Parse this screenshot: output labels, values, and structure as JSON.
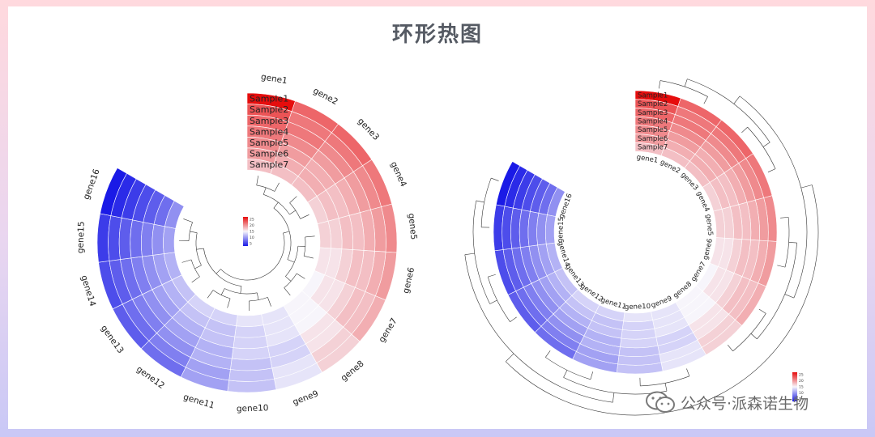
{
  "page": {
    "title": "环形热图",
    "watermark": "公众号·派森诺生物"
  },
  "colors": {
    "low": "#1a1ae6",
    "mid": "#f7f5fb",
    "high": "#e60d0d"
  },
  "chart_data": [
    {
      "type": "heatmap",
      "layout": "circular",
      "genes": [
        "gene1",
        "gene2",
        "gene3",
        "gene4",
        "gene5",
        "gene6",
        "gene7",
        "gene8",
        "gene9",
        "gene10",
        "gene11",
        "gene12",
        "gene13",
        "gene14",
        "gene15",
        "gene16"
      ],
      "samples": [
        "Sample1",
        "Sample2",
        "Sample3",
        "Sample4",
        "Sample5",
        "Sample6",
        "Sample7"
      ],
      "values": [
        [
          28,
          24,
          23,
          22,
          21,
          20,
          18
        ],
        [
          23,
          22,
          22,
          21,
          20,
          19,
          18
        ],
        [
          23,
          22,
          21,
          20,
          19,
          19,
          18
        ],
        [
          22,
          21,
          20,
          19,
          18,
          18,
          17
        ],
        [
          21,
          20,
          19,
          18,
          18,
          17,
          17
        ],
        [
          20,
          19,
          18,
          18,
          17,
          16,
          16
        ],
        [
          19,
          18,
          18,
          17,
          16,
          16,
          15
        ],
        [
          17,
          17,
          16,
          16,
          15,
          15,
          15
        ],
        [
          14,
          14,
          13,
          13,
          14,
          14,
          14
        ],
        [
          12,
          12,
          12,
          13,
          13,
          13,
          14
        ],
        [
          10,
          10,
          11,
          11,
          12,
          12,
          13
        ],
        [
          7,
          8,
          9,
          10,
          11,
          12,
          13
        ],
        [
          6,
          7,
          8,
          9,
          10,
          11,
          12
        ],
        [
          5,
          6,
          7,
          8,
          9,
          10,
          11
        ],
        [
          4,
          5,
          6,
          7,
          8,
          9,
          10
        ],
        [
          2,
          3,
          4,
          5,
          6,
          7,
          9
        ]
      ],
      "legend": {
        "ticks": [
          "25",
          "20",
          "15",
          "10",
          "5"
        ]
      },
      "gene_labels": "outside",
      "dendrogram": "inside"
    },
    {
      "type": "heatmap",
      "layout": "circular",
      "genes": [
        "gene1",
        "gene2",
        "gene3",
        "gene4",
        "gene5",
        "gene6",
        "gene7",
        "gene8",
        "gene9",
        "gene10",
        "gene11",
        "gene12",
        "gene13",
        "gene14",
        "gene15",
        "gene16"
      ],
      "samples": [
        "Sample1",
        "Sample2",
        "Sample3",
        "Sample4",
        "Sample5",
        "Sample6",
        "Sample7"
      ],
      "values": [
        [
          28,
          24,
          23,
          22,
          21,
          20,
          18
        ],
        [
          23,
          22,
          22,
          21,
          20,
          19,
          18
        ],
        [
          23,
          22,
          21,
          20,
          19,
          19,
          18
        ],
        [
          22,
          21,
          20,
          19,
          18,
          18,
          17
        ],
        [
          21,
          20,
          19,
          18,
          18,
          17,
          17
        ],
        [
          20,
          19,
          18,
          18,
          17,
          16,
          16
        ],
        [
          19,
          18,
          18,
          17,
          16,
          16,
          15
        ],
        [
          17,
          17,
          16,
          16,
          15,
          15,
          15
        ],
        [
          14,
          14,
          13,
          13,
          14,
          14,
          14
        ],
        [
          12,
          12,
          12,
          13,
          13,
          13,
          14
        ],
        [
          10,
          10,
          11,
          11,
          12,
          12,
          13
        ],
        [
          7,
          8,
          9,
          10,
          11,
          12,
          13
        ],
        [
          6,
          7,
          8,
          9,
          10,
          11,
          12
        ],
        [
          5,
          6,
          7,
          8,
          9,
          10,
          11
        ],
        [
          4,
          5,
          6,
          7,
          8,
          9,
          10
        ],
        [
          2,
          3,
          4,
          5,
          6,
          7,
          9
        ]
      ],
      "legend": {
        "ticks": [
          "25",
          "20",
          "15",
          "10",
          "5"
        ]
      },
      "gene_labels": "inside",
      "dendrogram": "outside"
    }
  ]
}
